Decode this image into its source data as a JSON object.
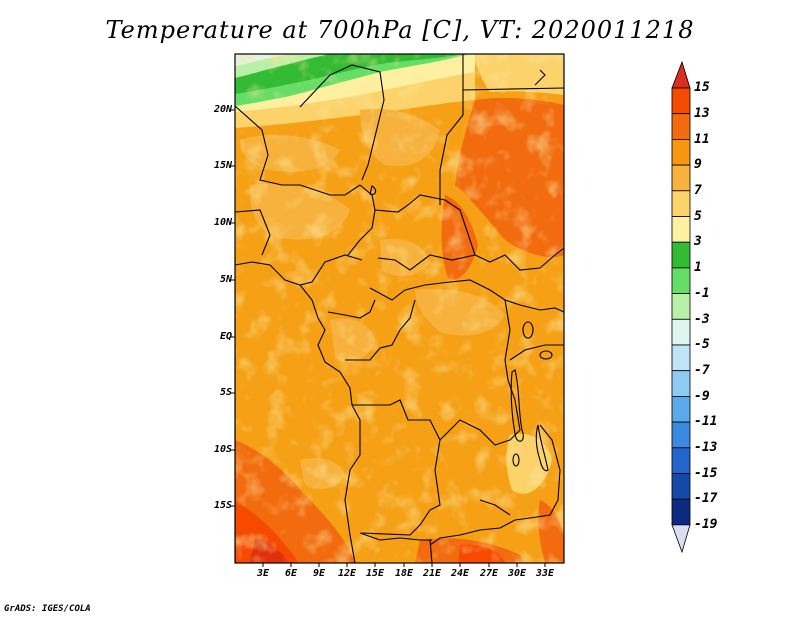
{
  "title": "Temperature at 700hPa [C], VT: 2020011218",
  "map": {
    "type": "filled contour map",
    "variable": "Temperature at 700hPa",
    "units": "C",
    "valid_time": "2020011218",
    "lat_ticks": [
      "20N",
      "15N",
      "10N",
      "5N",
      "EQ",
      "5S",
      "10S",
      "15S"
    ],
    "lon_ticks": [
      "3E",
      "6E",
      "9E",
      "12E",
      "15E",
      "18E",
      "21E",
      "24E",
      "27E",
      "30E",
      "33E"
    ]
  },
  "colorbar": {
    "labels": [
      "15",
      "13",
      "11",
      "9",
      "7",
      "5",
      "3",
      "1",
      "-1",
      "-3",
      "-5",
      "-7",
      "-9",
      "-11",
      "-13",
      "-15",
      "-17",
      "-19"
    ],
    "colors": [
      "#d7301f",
      "#f54a00",
      "#f26b0f",
      "#f5980f",
      "#f7b23d",
      "#fbd36a",
      "#fdf0a0",
      "#33bb33",
      "#66dd66",
      "#b8f0a8",
      "#dff5ef",
      "#bfe3f7",
      "#8fcaf2",
      "#5aa9ea",
      "#3b8ae0",
      "#2266cc",
      "#1549a8",
      "#0c2a80",
      "#081a55"
    ]
  },
  "footer": "GrADS: IGES/COLA"
}
